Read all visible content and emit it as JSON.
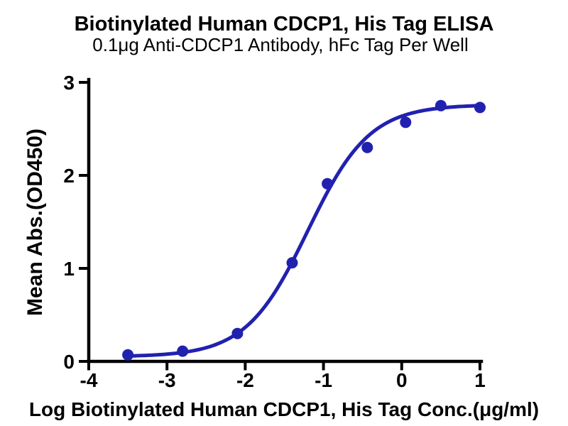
{
  "chart_data": {
    "type": "scatter",
    "title": "Biotinylated Human CDCP1, His Tag ELISA",
    "subtitle": "0.1μg Anti-CDCP1 Antibody, hFc Tag Per Well",
    "xlabel": "Log Biotinylated Human CDCP1, His Tag Conc.(μg/ml)",
    "ylabel": "Mean Abs.(OD450)",
    "xlim": [
      -4,
      1
    ],
    "ylim": [
      0,
      3
    ],
    "xticks": [
      -4,
      -3,
      -2,
      -1,
      0,
      1
    ],
    "yticks": [
      0,
      1,
      2,
      3
    ],
    "grid": false,
    "legend_position": "none",
    "background": "#ffffff",
    "axis_color": "#000000",
    "text_color": "#000000",
    "series": [
      {
        "name": "Biotinylated Human CDCP1, His Tag",
        "marker": "circle",
        "marker_color": "#2121b0",
        "marker_radius": 8,
        "points": [
          {
            "x": -3.5,
            "y": 0.07
          },
          {
            "x": -2.8,
            "y": 0.11
          },
          {
            "x": -2.1,
            "y": 0.3
          },
          {
            "x": -1.4,
            "y": 1.06
          },
          {
            "x": -0.95,
            "y": 1.91
          },
          {
            "x": -0.44,
            "y": 2.3
          },
          {
            "x": 0.05,
            "y": 2.57
          },
          {
            "x": 0.5,
            "y": 2.75
          },
          {
            "x": 1.0,
            "y": 2.73
          }
        ]
      }
    ],
    "fit_curve": {
      "model": "4PL",
      "bottom": 0.05,
      "top": 2.76,
      "logEC50": -1.2,
      "hill": 1.1,
      "x_start": -3.5,
      "x_end": 1.0,
      "color": "#2121b0",
      "stroke_width": 5
    }
  }
}
